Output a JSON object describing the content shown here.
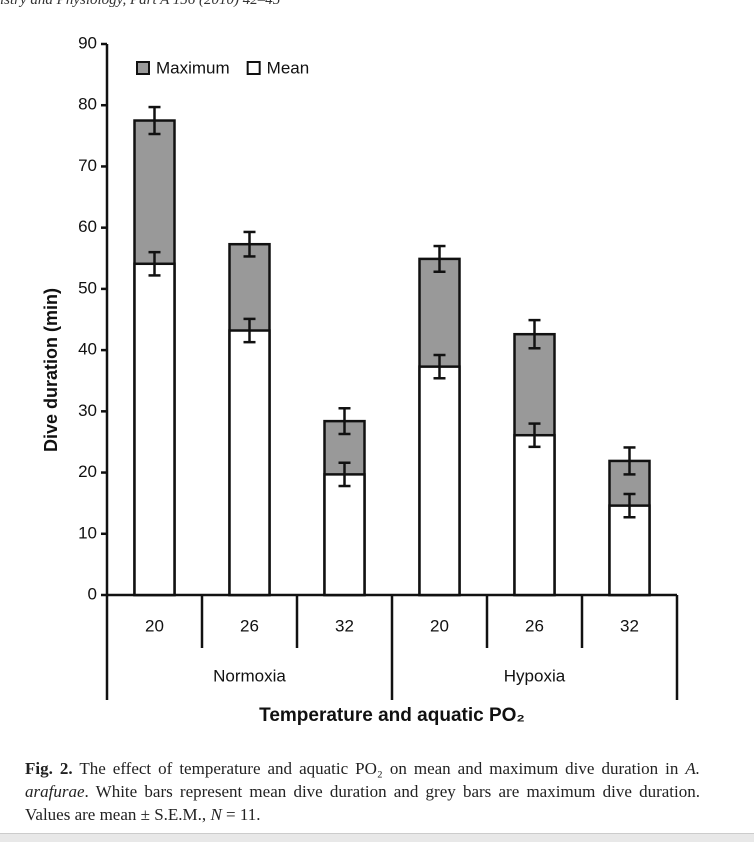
{
  "header": "istry and Physiology, Part A 156 (2010) 42–45",
  "chart_data": {
    "type": "bar",
    "ylabel": "Dive duration (min)",
    "xlabel": "Temperature and aquatic PO₂",
    "categories": [
      "20",
      "26",
      "32",
      "20",
      "26",
      "32"
    ],
    "groups": [
      "Normoxia",
      "Hypoxia"
    ],
    "ylim": [
      0,
      90
    ],
    "yticks": [
      0,
      10,
      20,
      30,
      40,
      50,
      60,
      70,
      80,
      90
    ],
    "legend": "top-left",
    "series": [
      {
        "name": "Maximum",
        "color": "#999999",
        "values": [
          77.5,
          57.3,
          28.4,
          54.9,
          42.6,
          21.9
        ],
        "errors": [
          2.2,
          2.0,
          2.1,
          2.1,
          2.3,
          2.2
        ]
      },
      {
        "name": "Mean",
        "color": "#ffffff",
        "values": [
          54.1,
          43.2,
          19.7,
          37.3,
          26.1,
          14.6
        ],
        "errors": [
          1.9,
          1.9,
          1.9,
          1.9,
          1.9,
          1.9
        ]
      }
    ]
  },
  "caption": {
    "label": "Fig. 2.",
    "text_1": " The effect of temperature and aquatic PO₂ on mean and maximum dive duration in ",
    "species": "A. arafurae",
    "text_2": ". White bars represent mean dive duration and grey bars are maximum dive duration. Values are mean ± S.E.M., ",
    "n": "N",
    "text_3": " = 11."
  }
}
